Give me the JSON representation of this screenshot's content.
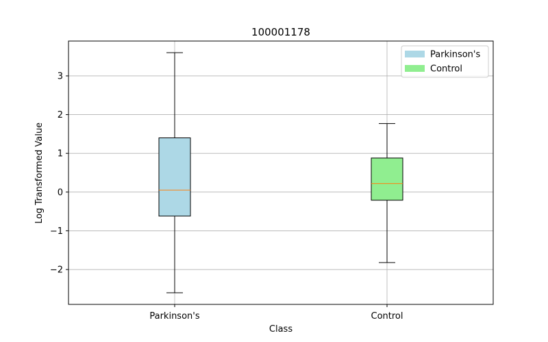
{
  "chart_data": {
    "type": "box",
    "title": "100001178",
    "xlabel": "Class",
    "ylabel": "Log Transformed Value",
    "categories": [
      "Parkinson's",
      "Control"
    ],
    "ylim": [
      -2.9,
      3.9
    ],
    "yticks": [
      -2,
      -1,
      0,
      1,
      2,
      3
    ],
    "ytick_labels": [
      "−2",
      "−1",
      "0",
      "1",
      "2",
      "3"
    ],
    "grid": true,
    "legend_position": "top-right",
    "series": [
      {
        "name": "Parkinson's",
        "color": "#add8e6",
        "whisker_low": -2.6,
        "q1": -0.62,
        "median": 0.05,
        "q3": 1.4,
        "whisker_high": 3.6
      },
      {
        "name": "Control",
        "color": "#90ee90",
        "whisker_low": -1.82,
        "q1": -0.21,
        "median": 0.22,
        "q3": 0.88,
        "whisker_high": 1.77
      }
    ],
    "median_color": "#ff7f0e"
  }
}
